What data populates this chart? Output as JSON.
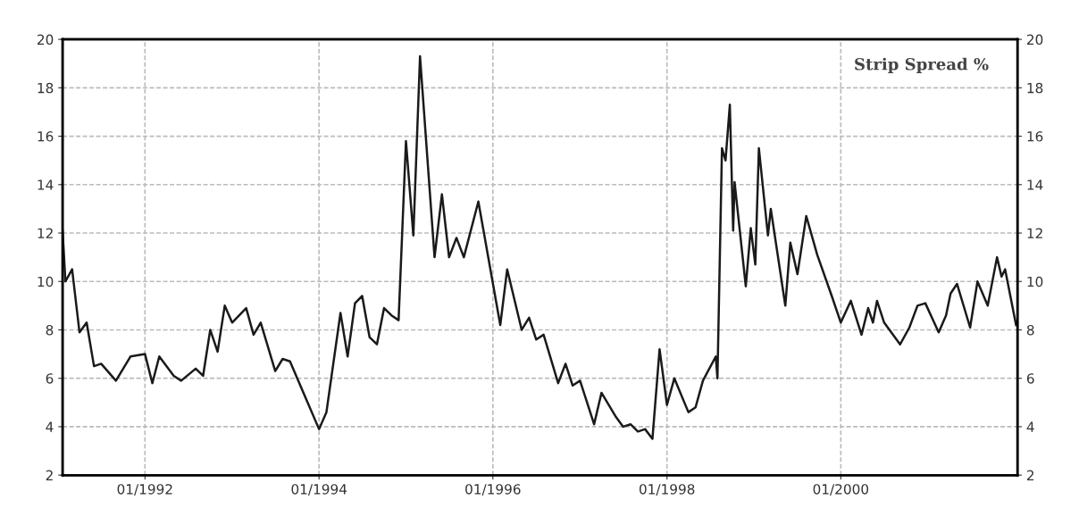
{
  "chart_data": {
    "type": "line",
    "x": [
      "1991-01-20",
      "1991-02",
      "1991-03",
      "1991-04",
      "1991-05",
      "1991-06",
      "1991-07",
      "1991-09",
      "1991-11",
      "1992-01",
      "1992-02",
      "1992-03",
      "1992-05",
      "1992-06",
      "1992-08",
      "1992-09",
      "1992-10",
      "1992-11",
      "1992-12",
      "1993-01",
      "1993-03",
      "1993-04",
      "1993-05",
      "1993-07",
      "1993-08",
      "1993-09",
      "1993-11",
      "1994-01",
      "1994-02",
      "1994-04",
      "1994-05",
      "1994-06",
      "1994-07",
      "1994-08",
      "1994-09",
      "1994-10",
      "1994-11",
      "1994-12",
      "1995-01",
      "1995-02",
      "1995-03",
      "1995-05",
      "1995-06",
      "1995-07",
      "1995-08",
      "1995-09",
      "1995-11",
      "1996-02",
      "1996-03",
      "1996-05",
      "1996-06",
      "1996-07",
      "1996-08",
      "1996-10",
      "1996-11",
      "1996-12",
      "1997-01",
      "1997-03",
      "1997-04",
      "1997-06",
      "1997-07",
      "1997-08",
      "1997-09",
      "1997-10",
      "1997-11",
      "1997-12",
      "1998-01",
      "1998-02",
      "1998-04",
      "1998-05",
      "1998-06",
      "1998-07-25",
      "1998-08-01",
      "1998-08-20",
      "1998-09-04",
      "1998-09-22",
      "1998-10-06",
      "1998-10-12",
      "1998-11-28",
      "1998-12-19",
      "1999-01-07",
      "1999-01-22",
      "1999-03-01",
      "1999-03-13",
      "1999-05-13",
      "1999-06-03",
      "1999-07-03",
      "1999-08-09",
      "1999-09-24",
      "1999-11-24",
      "2000-01-01",
      "2000-02-12",
      "2000-03-28",
      "2000-04-25",
      "2000-05-15",
      "2000-06-01",
      "2000-07-01",
      "2000-09-06",
      "2000-10-15",
      "2000-11-18",
      "2000-12-21",
      "2001-02-15",
      "2001-03-18",
      "2001-04-06",
      "2001-05-03",
      "2001-06-27",
      "2001-07-28",
      "2001-09-09",
      "2001-10-18",
      "2001-11-06",
      "2001-11-21",
      "2002-01-06"
    ],
    "series": [
      {
        "color": "#1a1a1a",
        "values": [
          12.1,
          10.0,
          10.5,
          7.9,
          8.3,
          6.5,
          6.6,
          5.9,
          6.9,
          7.0,
          5.8,
          6.9,
          6.1,
          5.9,
          6.4,
          6.1,
          8.0,
          7.1,
          9.0,
          8.3,
          8.9,
          7.8,
          8.3,
          6.3,
          6.8,
          6.7,
          5.3,
          3.9,
          4.6,
          8.7,
          6.9,
          9.1,
          9.4,
          7.7,
          7.4,
          8.9,
          8.6,
          8.4,
          15.8,
          11.9,
          19.3,
          11.0,
          13.6,
          11.0,
          11.8,
          11.0,
          13.3,
          8.2,
          10.5,
          8.0,
          8.5,
          7.6,
          7.8,
          5.8,
          6.6,
          5.7,
          5.9,
          4.1,
          5.4,
          4.4,
          4.0,
          4.1,
          3.8,
          3.9,
          3.5,
          7.2,
          4.9,
          6.0,
          4.6,
          4.8,
          5.9,
          6.9,
          6.0,
          15.5,
          15.0,
          17.3,
          12.1,
          14.1,
          9.8,
          12.2,
          10.7,
          15.5,
          11.9,
          13.0,
          9.0,
          11.6,
          10.3,
          12.7,
          11.1,
          9.4,
          8.3,
          9.2,
          7.8,
          8.9,
          8.3,
          9.2,
          8.3,
          7.4,
          8.1,
          9.0,
          9.1,
          7.9,
          8.6,
          9.5,
          9.9,
          8.1,
          10.0,
          9.0,
          11.0,
          10.2,
          10.5,
          8.2
        ]
      }
    ],
    "xlim": [
      "1991-01-20",
      "2002-01-12"
    ],
    "xticks": [
      {
        "value": "1992-01-01",
        "label": "01/1992"
      },
      {
        "value": "1994-01-01",
        "label": "01/1994"
      },
      {
        "value": "1996-01-01",
        "label": "01/1996"
      },
      {
        "value": "1998-01-01",
        "label": "01/1998"
      },
      {
        "value": "2000-01-01",
        "label": "01/2000"
      }
    ],
    "ylim": [
      2,
      20
    ],
    "yticks": [
      2,
      4,
      6,
      8,
      10,
      12,
      14,
      16,
      18,
      20
    ],
    "y2lim": [
      2,
      20
    ],
    "y2ticks": [
      2,
      4,
      6,
      8,
      10,
      12,
      14,
      16,
      18,
      20
    ],
    "annotations": [
      "Strip Spread %"
    ],
    "grid": true,
    "legend": false,
    "marker": "none",
    "line_style": "solid"
  }
}
